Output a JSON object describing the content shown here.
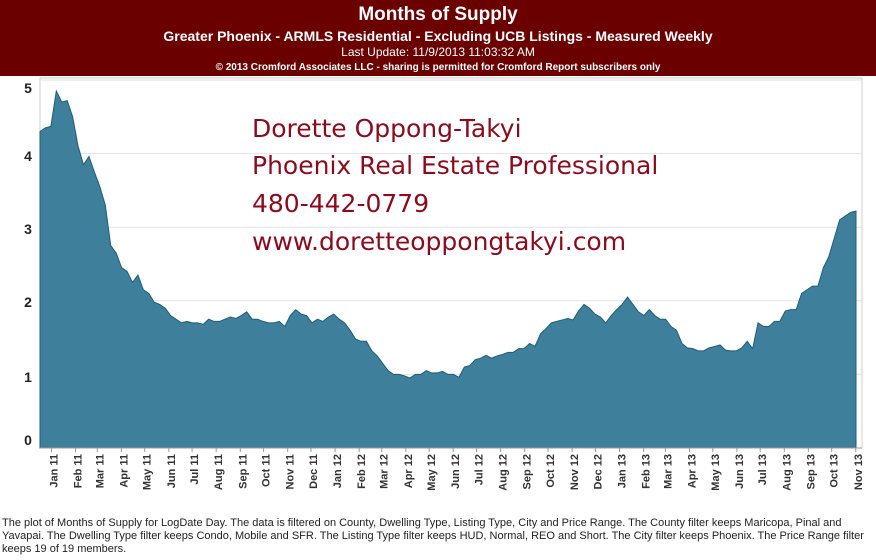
{
  "header": {
    "title": "Months of Supply",
    "subtitle": "Greater Phoenix - ARMLS Residential - Excluding UCB Listings - Measured Weekly",
    "last_update": "Last Update: 11/9/2013 11:03:32 AM",
    "copyright": "© 2013 Cromford Associates LLC - sharing is permitted for Cromford Report subscribers only"
  },
  "overlay": {
    "name": "Dorette Oppong-Takyi",
    "role": "Phoenix Real Estate Professional",
    "phone": "480-442-0779",
    "website": "www.doretteoppongtakyi.com"
  },
  "footer": {
    "note": "The plot of Months of Supply for LogDate Day. The data is filtered on County, Dwelling Type, Listing Type, City and Price Range. The County filter keeps Maricopa, Pinal and Yavapai. The Dwelling Type filter keeps Condo, Mobile and SFR. The Listing Type filter keeps HUD, Normal, REO and Short. The City filter keeps Phoenix. The Price Range filter keeps 19 of 19 members."
  },
  "colors": {
    "header_bg": "#6b0000",
    "area_fill": "#3e7f9b",
    "area_stroke": "#1f5d78",
    "overlay_text": "#8b0b1e"
  },
  "chart_data": {
    "type": "area",
    "ylim": [
      0,
      5
    ],
    "yticks": [
      0,
      1,
      2,
      3,
      4,
      5
    ],
    "grid": true,
    "x_tick_labels": [
      "Jan 11",
      "Feb 11",
      "Mar 11",
      "Apr 11",
      "May 11",
      "Jun 11",
      "Jul 11",
      "Aug 11",
      "Sep 11",
      "Oct 11",
      "Nov 11",
      "Dec 11",
      "Jan 12",
      "Feb 12",
      "Mar 12",
      "Apr 12",
      "May 12",
      "Jun 12",
      "Jul 12",
      "Aug 12",
      "Sep 12",
      "Oct 12",
      "Nov 12",
      "Dec 12",
      "Jan 13",
      "Feb 13",
      "Mar 13",
      "Apr 13",
      "May 13",
      "Jun 13",
      "Jul 13",
      "Aug 13",
      "Sep 13",
      "Oct 13",
      "Nov 13"
    ],
    "x_start": "2010-12-25",
    "x_end": "2013-11-09",
    "values": [
      4.3,
      4.35,
      4.37,
      4.85,
      4.7,
      4.72,
      4.5,
      4.1,
      3.85,
      3.96,
      3.75,
      3.55,
      3.3,
      2.75,
      2.65,
      2.45,
      2.4,
      2.25,
      2.35,
      2.15,
      2.1,
      1.98,
      1.95,
      1.9,
      1.8,
      1.75,
      1.7,
      1.72,
      1.7,
      1.7,
      1.68,
      1.75,
      1.72,
      1.72,
      1.75,
      1.78,
      1.76,
      1.8,
      1.85,
      1.75,
      1.75,
      1.72,
      1.7,
      1.7,
      1.72,
      1.65,
      1.8,
      1.88,
      1.82,
      1.8,
      1.7,
      1.75,
      1.72,
      1.78,
      1.82,
      1.75,
      1.7,
      1.6,
      1.48,
      1.45,
      1.45,
      1.32,
      1.25,
      1.15,
      1.05,
      1.0,
      1.0,
      0.98,
      0.95,
      1.0,
      1.0,
      1.05,
      1.02,
      1.02,
      1.04,
      1.0,
      1.0,
      0.96,
      1.1,
      1.12,
      1.2,
      1.22,
      1.26,
      1.22,
      1.25,
      1.27,
      1.3,
      1.3,
      1.35,
      1.35,
      1.42,
      1.38,
      1.55,
      1.62,
      1.7,
      1.72,
      1.74,
      1.76,
      1.74,
      1.86,
      1.95,
      1.9,
      1.82,
      1.78,
      1.7,
      1.8,
      1.88,
      1.95,
      2.05,
      1.95,
      1.85,
      1.8,
      1.88,
      1.8,
      1.75,
      1.75,
      1.65,
      1.6,
      1.42,
      1.36,
      1.35,
      1.32,
      1.32,
      1.36,
      1.38,
      1.4,
      1.33,
      1.32,
      1.32,
      1.36,
      1.45,
      1.35,
      1.7,
      1.65,
      1.65,
      1.72,
      1.72,
      1.86,
      1.88,
      1.88,
      2.1,
      2.15,
      2.2,
      2.2,
      2.45,
      2.6,
      2.85,
      3.1,
      3.15,
      3.2,
      3.22
    ]
  }
}
